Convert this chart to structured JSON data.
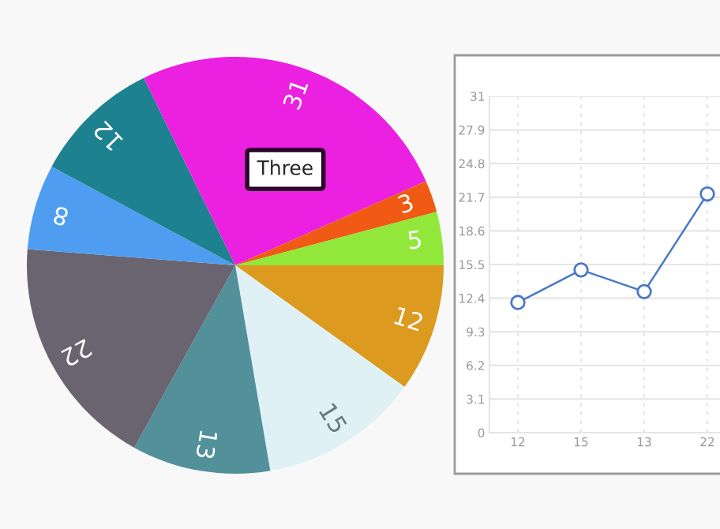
{
  "chart_data": [
    {
      "type": "pie",
      "categories": [
        null,
        null,
        null,
        null,
        null,
        null,
        null,
        null,
        null
      ],
      "values": [
        12,
        15,
        13,
        22,
        8,
        12,
        31,
        3,
        5
      ],
      "colors": [
        "#dc9a1e",
        "#e0f1f6",
        "#52909a",
        "#6a6470",
        "#4e9df0",
        "#1e8190",
        "#eb20e0",
        "#f05a14",
        "#92e83a"
      ],
      "data_labels": true,
      "annotations": [
        "Three"
      ]
    },
    {
      "type": "line",
      "categories": [
        "12",
        "15",
        "13",
        "22"
      ],
      "series": [
        {
          "color": "#4a78c8",
          "values": [
            12,
            15,
            13,
            22
          ]
        }
      ],
      "ylim": [
        0,
        31
      ],
      "yticks": [
        0,
        3.1,
        6.2,
        9.3,
        12.4,
        15.5,
        18.6,
        21.7,
        24.8,
        27.9,
        31
      ],
      "grid": true,
      "marker": "circle",
      "line_style": "solid",
      "legend": false
    }
  ]
}
